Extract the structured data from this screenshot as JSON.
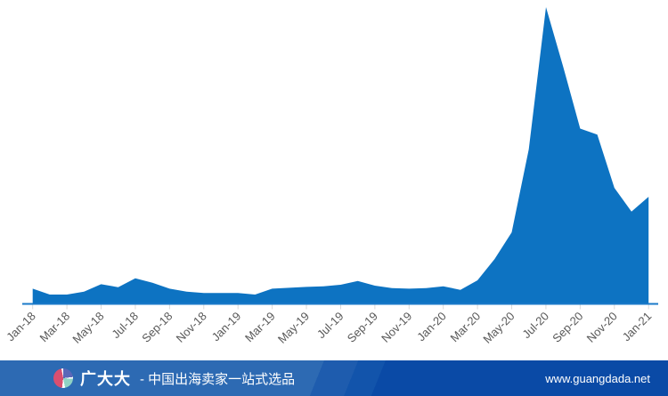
{
  "chart_data": {
    "type": "area",
    "title": "",
    "xlabel": "",
    "ylabel": "",
    "grid": false,
    "legend": "none",
    "ylim": [
      0,
      100
    ],
    "x": [
      "Jan-18",
      "Feb-18",
      "Mar-18",
      "Apr-18",
      "May-18",
      "Jun-18",
      "Jul-18",
      "Aug-18",
      "Sep-18",
      "Oct-18",
      "Nov-18",
      "Dec-18",
      "Jan-19",
      "Feb-19",
      "Mar-19",
      "Apr-19",
      "May-19",
      "Jun-19",
      "Jul-19",
      "Aug-19",
      "Sep-19",
      "Oct-19",
      "Nov-19",
      "Dec-19",
      "Jan-20",
      "Feb-20",
      "Mar-20",
      "Apr-20",
      "May-20",
      "Jun-20",
      "Jul-20",
      "Aug-20",
      "Sep-20",
      "Oct-20",
      "Nov-20",
      "Dec-20",
      "Jan-21"
    ],
    "values": [
      5,
      3,
      3,
      4,
      6.5,
      5.5,
      8.5,
      7,
      5,
      4,
      3.5,
      3.5,
      3.5,
      3,
      5,
      5.3,
      5.6,
      5.8,
      6.3,
      7.6,
      6,
      5.2,
      5,
      5.2,
      5.8,
      4.6,
      7.8,
      15,
      24,
      52,
      100,
      80,
      59,
      57,
      39,
      31,
      36
    ],
    "tick_labels": [
      "Jan-18",
      "Mar-18",
      "May-18",
      "Jul-18",
      "Sep-18",
      "Nov-18",
      "Jan-19",
      "Mar-19",
      "May-19",
      "Jul-19",
      "Sep-19",
      "Nov-19",
      "Jan-20",
      "Mar-20",
      "May-20",
      "Jul-20",
      "Sep-20",
      "Nov-20",
      "Jan-21"
    ],
    "colors": {
      "area_fill": "#0d73c2",
      "axis_line": "#1b7ac9",
      "tick_mark": "#d9d9d9",
      "label_text": "#595959"
    }
  },
  "footer": {
    "logo_icon": "pie-chart-logo",
    "brand": "广大大",
    "separator": "-",
    "tagline": "中国出海卖家一站式选品",
    "url": "www.guangdada.net",
    "colors": {
      "bg_left": "#2d6ab3",
      "bg_right": "#0a4aa6",
      "text": "#ffffff"
    }
  }
}
